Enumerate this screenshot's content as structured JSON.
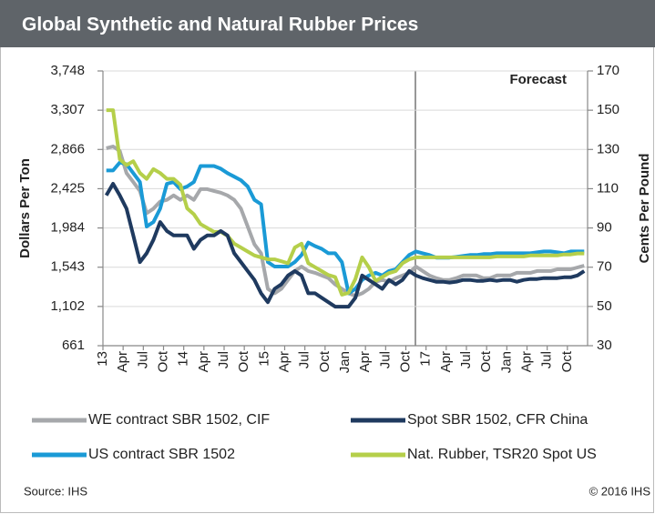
{
  "chart_data": {
    "type": "line",
    "title": "Global Synthetic and Natural Rubber Prices",
    "ylabel": "Dollars Per Ton",
    "y2label": "Cents Per Pound",
    "annotation": "Forecast",
    "source": "Source: IHS",
    "copyright": "© 2016 IHS",
    "categories": [
      "13",
      null,
      null,
      "Apr",
      null,
      null,
      "Jul",
      null,
      null,
      "Oct",
      null,
      null,
      "14",
      null,
      null,
      "Apr",
      null,
      null,
      "Jul",
      null,
      null,
      "Oct",
      null,
      null,
      "15",
      null,
      null,
      "Apr",
      null,
      null,
      "Jul",
      null,
      null,
      "Oct",
      null,
      null,
      "Jan",
      null,
      null,
      "Apr",
      null,
      null,
      "Jul",
      null,
      null,
      "Oct",
      null,
      null,
      "17",
      null,
      null,
      "Apr",
      null,
      null,
      "Jul",
      null,
      null,
      "Oct",
      null,
      null,
      "Jan",
      null,
      null,
      "Apr",
      null,
      null,
      "Jul",
      null,
      null,
      "Oct",
      null,
      null
    ],
    "ylim": [
      661,
      3748
    ],
    "yticks": [
      661,
      {
        "value": 1102,
        "label": "1,102"
      },
      {
        "value": 1543,
        "label": "1,543"
      },
      {
        "value": 1984,
        "label": "1,984"
      },
      {
        "value": 2425,
        "label": "2,425"
      },
      {
        "value": 2866,
        "label": "2,866"
      },
      {
        "value": 3307,
        "label": "3,307"
      },
      {
        "value": 3748,
        "label": "3,748"
      }
    ],
    "y2lim": [
      30,
      170
    ],
    "y2ticks": [
      30,
      50,
      70,
      90,
      110,
      130,
      150,
      170
    ],
    "grid": true,
    "series": [
      {
        "name": "WE contract SBR 1502, CIF",
        "color": "#a6a8ab",
        "values": [
          2880,
          2900,
          2850,
          2600,
          2500,
          2400,
          2150,
          2200,
          2280,
          2300,
          2350,
          2300,
          2350,
          2300,
          2420,
          2420,
          2400,
          2380,
          2350,
          2300,
          2200,
          2000,
          1800,
          1700,
          1300,
          1250,
          1300,
          1400,
          1500,
          1550,
          1500,
          1480,
          1450,
          1420,
          1350,
          1300,
          1250,
          1220,
          1250,
          1300,
          1380,
          1400,
          1380,
          1420,
          1450,
          1480,
          1550,
          1500,
          1450,
          1420,
          1400,
          1400,
          1420,
          1450,
          1450,
          1450,
          1420,
          1420,
          1450,
          1450,
          1450,
          1480,
          1480,
          1480,
          1500,
          1500,
          1500,
          1520,
          1520,
          1520,
          1540,
          1560
        ]
      },
      {
        "name": "Spot SBR 1502, CFR China",
        "color": "#1f3a5f",
        "values": [
          2350,
          2480,
          2350,
          2200,
          1900,
          1600,
          1700,
          1850,
          2050,
          1950,
          1900,
          1900,
          1900,
          1750,
          1850,
          1900,
          1900,
          1950,
          1900,
          1700,
          1600,
          1500,
          1400,
          1250,
          1150,
          1300,
          1350,
          1450,
          1500,
          1450,
          1250,
          1250,
          1200,
          1150,
          1100,
          1100,
          1100,
          1200,
          1450,
          1400,
          1350,
          1300,
          1400,
          1350,
          1400,
          1500,
          1450,
          1420,
          1400,
          1380,
          1380,
          1370,
          1380,
          1400,
          1400,
          1390,
          1390,
          1400,
          1390,
          1400,
          1400,
          1380,
          1400,
          1410,
          1410,
          1420,
          1420,
          1420,
          1430,
          1430,
          1450,
          1500
        ]
      },
      {
        "name": "US contract SBR 1502",
        "color": "#1a9ad6",
        "values": [
          2630,
          2630,
          2720,
          2700,
          2600,
          2500,
          2000,
          2050,
          2200,
          2480,
          2500,
          2420,
          2450,
          2500,
          2680,
          2680,
          2680,
          2650,
          2600,
          2560,
          2520,
          2450,
          2300,
          2250,
          1600,
          1550,
          1550,
          1550,
          1600,
          1680,
          1820,
          1780,
          1750,
          1700,
          1700,
          1600,
          1250,
          1300,
          1400,
          1450,
          1480,
          1450,
          1500,
          1520,
          1600,
          1680,
          1720,
          1700,
          1680,
          1650,
          1650,
          1650,
          1660,
          1670,
          1680,
          1680,
          1690,
          1690,
          1700,
          1700,
          1700,
          1700,
          1700,
          1700,
          1710,
          1720,
          1720,
          1710,
          1700,
          1720,
          1720,
          1720
        ]
      },
      {
        "name": "Nat. Rubber, TSR20 Spot US",
        "color": "#b5cf4a",
        "axis": "y2",
        "values": [
          150,
          150,
          125,
          122,
          124,
          118,
          115,
          120,
          118,
          115,
          115,
          112,
          100,
          97,
          92,
          90,
          88,
          88,
          86,
          82,
          80,
          78,
          76,
          75,
          74,
          74,
          73,
          72,
          80,
          82,
          72,
          70,
          68,
          66,
          65,
          56,
          57,
          64,
          75,
          70,
          63,
          65,
          67,
          68,
          72,
          74,
          75,
          75,
          75,
          75,
          75,
          75,
          75,
          75,
          75,
          75,
          75,
          75,
          75.5,
          75.5,
          75.5,
          75.5,
          75.5,
          76,
          76,
          76,
          76,
          76,
          76.5,
          76.5,
          77,
          77
        ]
      }
    ]
  }
}
